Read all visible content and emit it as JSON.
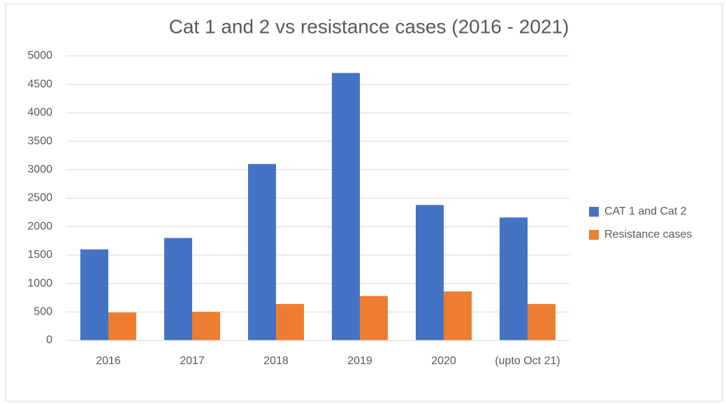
{
  "chart_data": {
    "type": "bar",
    "title": "Cat 1 and 2 vs resistance cases (2016 - 2021)",
    "categories": [
      "2016",
      "2017",
      "2018",
      "2019",
      "2020",
      "(upto Oct 21)"
    ],
    "series": [
      {
        "name": "CAT 1 and Cat 2",
        "color": "#4472c4",
        "values": [
          1600,
          1800,
          3100,
          4700,
          2380,
          2160
        ]
      },
      {
        "name": "Resistance cases",
        "color": "#ed7d31",
        "values": [
          490,
          500,
          640,
          780,
          860,
          640
        ]
      }
    ],
    "ylim": [
      0,
      5000
    ],
    "yticks": [
      0,
      500,
      1000,
      1500,
      2000,
      2500,
      3000,
      3500,
      4000,
      4500,
      5000
    ],
    "grid": true,
    "legend": "right"
  }
}
